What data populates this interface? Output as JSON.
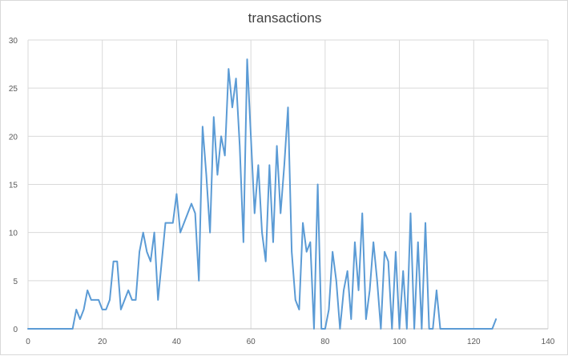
{
  "chart_data": {
    "type": "line",
    "title": "transactions",
    "xlabel": "",
    "ylabel": "",
    "xlim": [
      0,
      140
    ],
    "ylim": [
      0,
      30
    ],
    "x_ticks": [
      0,
      20,
      40,
      60,
      80,
      100,
      120,
      140
    ],
    "y_ticks": [
      0,
      5,
      10,
      15,
      20,
      25,
      30
    ],
    "grid": true,
    "legend": "none",
    "series_color": "#5b9bd5",
    "series": [
      {
        "x": [
          0,
          1,
          2,
          3,
          4,
          5,
          6,
          7,
          8,
          9,
          10,
          11,
          12,
          13,
          14,
          15,
          16,
          17,
          18,
          19,
          20,
          21,
          22,
          23,
          24,
          25,
          26,
          27,
          28,
          29,
          30,
          31,
          32,
          33,
          34,
          35,
          36,
          37,
          38,
          39,
          40,
          41,
          42,
          43,
          44,
          45,
          46,
          47,
          48,
          49,
          50,
          51,
          52,
          53,
          54,
          55,
          56,
          57,
          58,
          59,
          60,
          61,
          62,
          63,
          64,
          65,
          66,
          67,
          68,
          69,
          70,
          71,
          72,
          73,
          74,
          75,
          76,
          77,
          78,
          79,
          80,
          81,
          82,
          83,
          84,
          85,
          86,
          87,
          88,
          89,
          90,
          91,
          92,
          93,
          94,
          95,
          96,
          97,
          98,
          99,
          100,
          101,
          102,
          103,
          104,
          105,
          106,
          107,
          108,
          109,
          110,
          111,
          112,
          113,
          114,
          115,
          116,
          117,
          118,
          119,
          120,
          121,
          122,
          123,
          124,
          125,
          126
        ],
        "values": [
          0,
          0,
          0,
          0,
          0,
          0,
          0,
          0,
          0,
          0,
          0,
          0,
          0,
          2,
          1,
          2,
          4,
          3,
          3,
          3,
          2,
          2,
          3,
          7,
          7,
          2,
          3,
          4,
          3,
          3,
          8,
          10,
          8,
          7,
          10,
          3,
          7,
          11,
          11,
          11,
          14,
          10,
          11,
          12,
          13,
          12,
          5,
          21,
          16,
          10,
          22,
          16,
          20,
          18,
          27,
          23,
          26,
          19,
          9,
          28,
          20,
          12,
          17,
          10,
          7,
          17,
          9,
          19,
          12,
          17,
          23,
          8,
          3,
          2,
          11,
          8,
          9,
          0,
          15,
          0,
          0,
          2,
          8,
          5,
          0,
          4,
          6,
          1,
          9,
          4,
          12,
          1,
          4,
          9,
          5,
          0,
          8,
          7,
          0,
          8,
          0,
          6,
          0,
          12,
          0,
          9,
          0,
          11,
          0,
          0,
          4,
          0,
          0,
          0,
          0,
          0,
          0,
          0,
          0,
          0,
          0,
          0,
          0,
          0,
          0,
          0,
          1
        ]
      }
    ]
  }
}
